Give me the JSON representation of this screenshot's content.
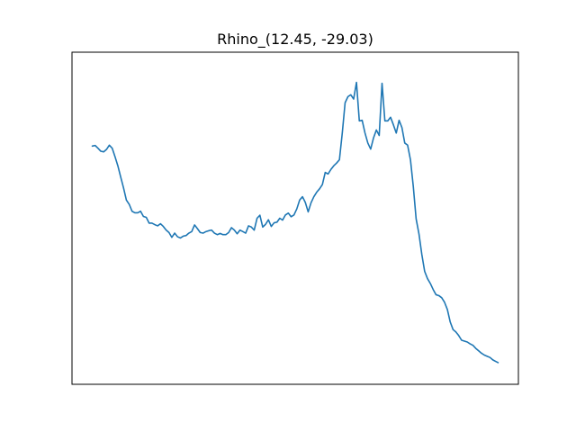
{
  "chart_data": {
    "type": "line",
    "title": "Rhino_(12.45, -29.03)",
    "xlabel": "",
    "ylabel": "",
    "xaxis_visible": false,
    "yaxis_visible": false,
    "grid": false,
    "legend": "none",
    "xlim": [
      -5,
      105
    ],
    "ylim": [
      0,
      1
    ],
    "series": [
      {
        "color": "#1f77b4",
        "x": [
          0,
          0.7,
          1.4,
          2.1,
          2.8,
          3.5,
          4.2,
          4.9,
          5.6,
          6.3,
          7.0,
          7.7,
          8.4,
          9.1,
          9.8,
          10.5,
          11.2,
          11.9,
          12.6,
          13.3,
          14.0,
          14.7,
          15.4,
          16.1,
          16.8,
          17.5,
          18.2,
          18.9,
          19.6,
          20.3,
          21.0,
          21.7,
          22.4,
          23.1,
          23.8,
          24.5,
          25.2,
          25.9,
          26.6,
          27.3,
          28.0,
          28.7,
          29.4,
          30.1,
          30.8,
          31.5,
          32.2,
          32.9,
          33.6,
          34.3,
          35.0,
          35.7,
          36.4,
          37.1,
          37.8,
          38.5,
          39.2,
          39.9,
          40.6,
          41.3,
          42.0,
          42.7,
          43.4,
          44.1,
          44.8,
          45.5,
          46.2,
          46.9,
          47.6,
          48.3,
          49.0,
          49.7,
          50.4,
          51.1,
          51.8,
          52.5,
          53.2,
          53.9,
          54.6,
          55.3,
          56.0,
          56.7,
          57.4,
          58.1,
          58.8,
          59.5,
          60.2,
          60.9,
          61.6,
          62.3,
          63.0,
          63.7,
          64.4,
          65.1,
          65.8,
          66.5,
          67.2,
          67.9,
          68.6,
          69.3,
          70.0,
          70.7,
          71.4,
          72.1,
          72.8,
          73.5,
          74.2,
          74.9,
          75.6,
          76.3,
          77.0,
          77.7,
          78.4,
          79.1,
          79.8,
          80.5,
          81.2,
          81.9,
          82.6,
          83.3,
          84.0,
          84.7,
          85.4,
          86.1,
          86.8,
          87.5,
          88.2,
          88.9,
          89.6,
          90.3,
          91.0,
          91.7,
          92.4,
          93.1,
          93.8,
          94.5,
          95.2,
          95.9,
          96.6,
          97.3,
          98.0,
          98.7,
          99.4,
          100.0
        ],
        "y": [
          0.735,
          0.737,
          0.728,
          0.718,
          0.716,
          0.724,
          0.738,
          0.728,
          0.7,
          0.67,
          0.633,
          0.597,
          0.557,
          0.543,
          0.52,
          0.515,
          0.515,
          0.52,
          0.503,
          0.5,
          0.481,
          0.481,
          0.476,
          0.472,
          0.479,
          0.47,
          0.458,
          0.45,
          0.434,
          0.448,
          0.436,
          0.432,
          0.438,
          0.44,
          0.448,
          0.453,
          0.475,
          0.463,
          0.45,
          0.448,
          0.453,
          0.456,
          0.458,
          0.448,
          0.443,
          0.447,
          0.443,
          0.443,
          0.45,
          0.466,
          0.458,
          0.446,
          0.458,
          0.453,
          0.448,
          0.472,
          0.468,
          0.458,
          0.497,
          0.507,
          0.468,
          0.477,
          0.492,
          0.47,
          0.482,
          0.484,
          0.497,
          0.491,
          0.508,
          0.514,
          0.502,
          0.508,
          0.528,
          0.557,
          0.568,
          0.549,
          0.518,
          0.548,
          0.568,
          0.583,
          0.594,
          0.608,
          0.648,
          0.643,
          0.658,
          0.67,
          0.679,
          0.69,
          0.778,
          0.878,
          0.898,
          0.904,
          0.89,
          0.945,
          0.818,
          0.82,
          0.778,
          0.745,
          0.725,
          0.762,
          0.788,
          0.77,
          0.942,
          0.818,
          0.818,
          0.83,
          0.805,
          0.778,
          0.82,
          0.796,
          0.745,
          0.738,
          0.69,
          0.602,
          0.495,
          0.445,
          0.378,
          0.322,
          0.298,
          0.282,
          0.262,
          0.245,
          0.242,
          0.235,
          0.22,
          0.196,
          0.155,
          0.13,
          0.122,
          0.11,
          0.095,
          0.092,
          0.089,
          0.083,
          0.078,
          0.068,
          0.06,
          0.052,
          0.046,
          0.042,
          0.038,
          0.03,
          0.025,
          0.021
        ]
      }
    ]
  }
}
